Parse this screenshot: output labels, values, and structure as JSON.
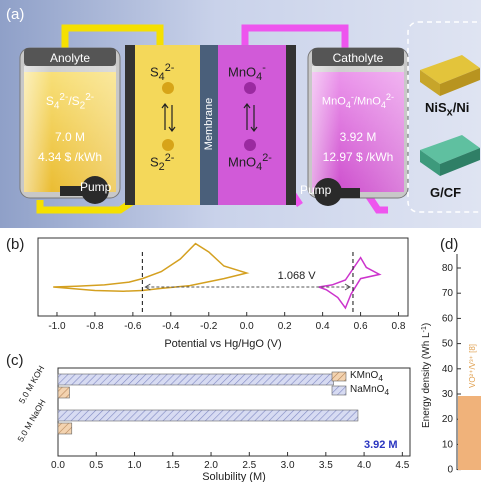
{
  "panel_a": {
    "label": "(a)",
    "anolyte": {
      "title": "Anolyte",
      "couple_html": "S<sub>4</sub><sup>2-</sup>/S<sub>2</sub><sup>2-</sup>",
      "conc": "7.0 M",
      "cost": "4.34 $ /kWh",
      "pump": "Pump"
    },
    "catholyte": {
      "title": "Catholyte",
      "couple_html": "MnO<sub>4</sub><sup>-</sup>/MnO<sub>4</sub><sup>2-</sup>",
      "conc": "3.92 M",
      "cost": "12.97 $ /kWh",
      "pump": "Pump"
    },
    "membrane": "Membrane",
    "left_top_html": "S<sub>4</sub><sup>2-</sup>",
    "left_bottom_html": "S<sub>2</sub><sup>2-</sup>",
    "right_top_html": "MnO<sub>4</sub><sup>-</sup>",
    "right_bottom_html": "MnO<sub>4</sub><sup>2-</sup>",
    "electrode_top_html": "NiS<sub>x</sub>/Ni",
    "electrode_bottom": "G/CF",
    "colors": {
      "anolyte": "#f0c020",
      "catholyte": "#d34ad8",
      "pipe_left": "#f5e000",
      "pipe_right": "#ee55ee"
    }
  },
  "panel_b": {
    "label": "(b)",
    "xlabel": "Potential vs Hg/HgO (V)",
    "annotation": "1.068 V",
    "chart_data": {
      "type": "line",
      "xticks": [
        -1.0,
        -0.8,
        -0.6,
        -0.4,
        -0.2,
        0.0,
        0.2,
        0.4,
        0.6,
        0.8
      ],
      "xtick_labels": [
        "-1.0",
        "-0.8",
        "-0.6",
        "-0.4",
        "-0.2",
        "0.0",
        "0.2",
        "0.4",
        "0.6",
        "0.8"
      ],
      "xlim": [
        -1.1,
        0.85
      ],
      "markers": [
        -0.55,
        0.56
      ],
      "gap_label": "1.068 V",
      "series": [
        {
          "color": "#d4a020",
          "points": [
            [
              -1.02,
              0.0
            ],
            [
              -0.9,
              0.01
            ],
            [
              -0.75,
              0.03
            ],
            [
              -0.62,
              0.07
            ],
            [
              -0.55,
              0.12
            ],
            [
              -0.45,
              0.22
            ],
            [
              -0.35,
              0.4
            ],
            [
              -0.27,
              0.62
            ],
            [
              -0.2,
              0.5
            ],
            [
              -0.12,
              0.3
            ],
            [
              0.0,
              0.2
            ],
            [
              -0.12,
              0.12
            ],
            [
              -0.3,
              0.02
            ],
            [
              -0.45,
              -0.02
            ],
            [
              -0.55,
              -0.05
            ],
            [
              -0.65,
              -0.06
            ],
            [
              -0.8,
              -0.05
            ],
            [
              -1.02,
              0.0
            ]
          ]
        },
        {
          "color": "#cc33cc",
          "points": [
            [
              0.38,
              0.0
            ],
            [
              0.45,
              0.03
            ],
            [
              0.52,
              0.1
            ],
            [
              0.57,
              0.3
            ],
            [
              0.6,
              0.42
            ],
            [
              0.63,
              0.28
            ],
            [
              0.7,
              0.18
            ],
            [
              0.6,
              0.12
            ],
            [
              0.55,
              -0.1
            ],
            [
              0.52,
              -0.3
            ],
            [
              0.48,
              -0.15
            ],
            [
              0.42,
              -0.04
            ],
            [
              0.38,
              0.0
            ]
          ]
        }
      ]
    }
  },
  "panel_c": {
    "label": "(c)",
    "xlabel": "Solubility (M)",
    "value_label": "3.92 M",
    "chart_data": {
      "type": "bar",
      "orientation": "horizontal",
      "categories": [
        "5.0 M KOH",
        "5.0 M NaOH"
      ],
      "series": [
        {
          "name": "KMnO4",
          "name_html": "KMnO<sub>4</sub>",
          "color": "#e8b88a",
          "values": [
            0.15,
            0.18
          ]
        },
        {
          "name": "NaMnO4",
          "name_html": "NaMnO<sub>4</sub>",
          "color": "#b8bfe6",
          "values": [
            3.6,
            3.92
          ]
        }
      ],
      "xlim": [
        0,
        4.6
      ],
      "xticks": [
        0.0,
        0.5,
        1.0,
        1.5,
        2.0,
        2.5,
        3.0,
        3.5,
        4.0,
        4.5
      ],
      "xtick_labels": [
        "0.0",
        "0.5",
        "1.0",
        "1.5",
        "2.0",
        "2.5",
        "3.0",
        "3.5",
        "4.0",
        "4.5"
      ]
    }
  },
  "panel_d": {
    "label": "(d)",
    "ylabel": "Energy density (Wh L",
    "ylabel_sup": "-1",
    "ylabel_end": ")",
    "yticks": [
      "80",
      "70",
      "60",
      "50",
      "40",
      "30",
      "20",
      "10",
      "0"
    ],
    "partial_label": "VO²⁺/V³⁺ [8]"
  }
}
